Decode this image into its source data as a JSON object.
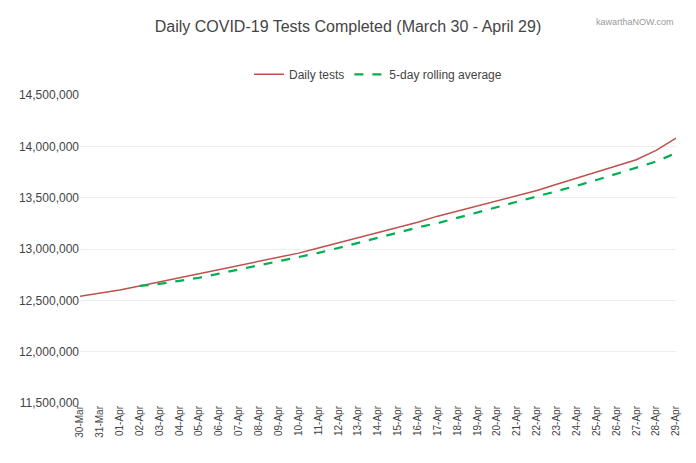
{
  "chart_data": {
    "type": "line",
    "title": "Daily COVID-19 Tests Completed (March 30 - April 29)",
    "annotations": [
      "kawarthaNOW.com"
    ],
    "categories": [
      "30-Mar",
      "31-Mar",
      "01-Apr",
      "02-Apr",
      "03-Apr",
      "04-Apr",
      "05-Apr",
      "06-Apr",
      "07-Apr",
      "08-Apr",
      "09-Apr",
      "10-Apr",
      "11-Apr",
      "12-Apr",
      "13-Apr",
      "14-Apr",
      "15-Apr",
      "16-Apr",
      "17-Apr",
      "18-Apr",
      "19-Apr",
      "20-Apr",
      "21-Apr",
      "22-Apr",
      "23-Apr",
      "24-Apr",
      "25-Apr",
      "26-Apr",
      "27-Apr",
      "28-Apr",
      "29-Apr"
    ],
    "series": [
      {
        "name": "Daily tests",
        "color": "#c0504d",
        "line_style": "solid",
        "values": [
          12540000,
          12570000,
          12600000,
          12640000,
          12680000,
          12720000,
          12760000,
          12800000,
          12840000,
          12880000,
          12920000,
          12960000,
          13010000,
          13060000,
          13110000,
          13160000,
          13210000,
          13260000,
          13320000,
          13370000,
          13420000,
          13470000,
          13520000,
          13570000,
          13630000,
          13690000,
          13750000,
          13810000,
          13870000,
          13960000,
          14080000
        ]
      },
      {
        "name": "5-day rolling average",
        "color": "#00b050",
        "line_style": "dashed",
        "values": [
          null,
          null,
          null,
          12640000,
          12660000,
          12690000,
          12720000,
          12760000,
          12800000,
          12840000,
          12880000,
          12920000,
          12962000,
          13010000,
          13060000,
          13110000,
          13160000,
          13210000,
          13252000,
          13304000,
          13356000,
          13406000,
          13458000,
          13508000,
          13562000,
          13616000,
          13672000,
          13730000,
          13790000,
          13852000,
          13934000
        ]
      }
    ],
    "ylim": [
      11500000,
      14500000
    ],
    "yticks": [
      {
        "value": 11500000,
        "label": "11,500,000"
      },
      {
        "value": 12000000,
        "label": "12,000,000"
      },
      {
        "value": 12500000,
        "label": "12,500,000"
      },
      {
        "value": 13000000,
        "label": "13,000,000"
      },
      {
        "value": 13500000,
        "label": "13,500,000"
      },
      {
        "value": 14000000,
        "label": "14,000,000"
      },
      {
        "value": 14500000,
        "label": "14,500,000"
      }
    ],
    "grid": true,
    "legend": "top"
  }
}
